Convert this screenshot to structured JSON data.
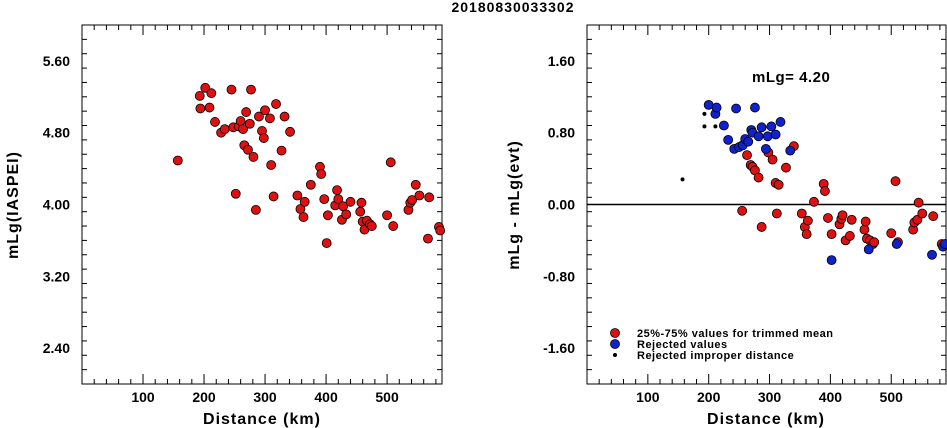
{
  "title": "20180830033302",
  "chart_data": [
    {
      "type": "scatter",
      "xlabel": "Distance (km)",
      "ylabel": "mLg(IASPEI)",
      "xlim": [
        0,
        590
      ],
      "ylim": [
        2.0,
        6.0
      ],
      "xticks": [
        100,
        200,
        300,
        400,
        500
      ],
      "yticks": [
        2.4,
        3.2,
        4.0,
        4.8,
        5.6
      ],
      "ytick_labels": [
        "2.40",
        "3.20",
        "4.00",
        "4.80",
        "5.60"
      ],
      "xtick_labels": [
        "100",
        "200",
        "300",
        "400",
        "500"
      ],
      "series": [
        {
          "color": "#dd1111",
          "points": [
            [
              157,
              4.49
            ],
            [
              193,
              5.21
            ],
            [
              194,
              5.07
            ],
            [
              202,
              5.3
            ],
            [
              209,
              5.08
            ],
            [
              212,
              5.24
            ],
            [
              218,
              4.92
            ],
            [
              228,
              4.8
            ],
            [
              234,
              4.84
            ],
            [
              245,
              5.28
            ],
            [
              248,
              4.86
            ],
            [
              252,
              4.12
            ],
            [
              257,
              4.87
            ],
            [
              260,
              4.93
            ],
            [
              264,
              4.84
            ],
            [
              266,
              4.66
            ],
            [
              269,
              5.03
            ],
            [
              272,
              4.61
            ],
            [
              275,
              4.9
            ],
            [
              277,
              5.28
            ],
            [
              281,
              4.53
            ],
            [
              285,
              3.94
            ],
            [
              290,
              4.98
            ],
            [
              295,
              4.82
            ],
            [
              298,
              4.74
            ],
            [
              300,
              5.05
            ],
            [
              308,
              4.96
            ],
            [
              310,
              4.44
            ],
            [
              314,
              4.09
            ],
            [
              318,
              5.12
            ],
            [
              327,
              4.6
            ],
            [
              332,
              4.98
            ],
            [
              341,
              4.81
            ],
            [
              353,
              4.1
            ],
            [
              358,
              3.95
            ],
            [
              363,
              3.86
            ],
            [
              365,
              4.03
            ],
            [
              375,
              4.22
            ],
            [
              390,
              4.42
            ],
            [
              392,
              4.34
            ],
            [
              397,
              4.06
            ],
            [
              401,
              3.57
            ],
            [
              403,
              3.88
            ],
            [
              415,
              3.99
            ],
            [
              418,
              4.16
            ],
            [
              420,
              4.06
            ],
            [
              426,
              3.83
            ],
            [
              428,
              3.98
            ],
            [
              433,
              3.89
            ],
            [
              440,
              4.03
            ],
            [
              456,
              3.92
            ],
            [
              458,
              4.02
            ],
            [
              460,
              3.81
            ],
            [
              463,
              3.72
            ],
            [
              467,
              3.82
            ],
            [
              472,
              3.78
            ],
            [
              475,
              3.76
            ],
            [
              500,
              3.88
            ],
            [
              506,
              4.47
            ],
            [
              510,
              3.76
            ],
            [
              535,
              3.94
            ],
            [
              538,
              4.02
            ],
            [
              541,
              4.05
            ],
            [
              547,
              4.22
            ],
            [
              553,
              4.1
            ],
            [
              567,
              3.62
            ],
            [
              569,
              4.08
            ],
            [
              585,
              3.75
            ],
            [
              587,
              3.71
            ]
          ]
        }
      ]
    },
    {
      "type": "scatter",
      "xlabel": "Distance (km)",
      "ylabel": "mLg - mLg(evt)",
      "xlim": [
        0,
        590
      ],
      "ylim": [
        -2.0,
        2.0
      ],
      "xticks": [
        100,
        200,
        300,
        400,
        500
      ],
      "yticks": [
        -1.6,
        -0.8,
        0.0,
        0.8,
        1.6
      ],
      "ytick_labels": [
        "-1.60",
        "-0.80",
        "0.00",
        "0.80",
        "1.60"
      ],
      "xtick_labels": [
        "100",
        "200",
        "300",
        "400",
        "500"
      ],
      "annotation": "mLg= 4.20",
      "zero_line": true,
      "legend": {
        "position": "bottom-left",
        "entries": [
          {
            "label": "25%-75% values for trimmed mean",
            "color": "#dd1111"
          },
          {
            "label": "Rejected values",
            "color": "#1122cc"
          },
          {
            "label": "Rejected improper distance",
            "color": "#000000"
          }
        ]
      },
      "series": [
        {
          "color": "#dd1111",
          "points": [
            [
              255,
              -0.07
            ],
            [
              263,
              0.55
            ],
            [
              269,
              0.44
            ],
            [
              272,
              0.42
            ],
            [
              276,
              0.38
            ],
            [
              282,
              0.3
            ],
            [
              287,
              -0.25
            ],
            [
              298,
              0.58
            ],
            [
              305,
              0.5
            ],
            [
              310,
              0.24
            ],
            [
              315,
              0.22
            ],
            [
              312,
              -0.1
            ],
            [
              327,
              0.41
            ],
            [
              340,
              0.65
            ],
            [
              353,
              -0.1
            ],
            [
              358,
              -0.25
            ],
            [
              361,
              -0.33
            ],
            [
              363,
              -0.18
            ],
            [
              373,
              0.03
            ],
            [
              389,
              0.23
            ],
            [
              391,
              0.15
            ],
            [
              396,
              -0.15
            ],
            [
              402,
              -0.33
            ],
            [
              415,
              -0.22
            ],
            [
              418,
              -0.16
            ],
            [
              420,
              -0.12
            ],
            [
              425,
              -0.4
            ],
            [
              432,
              -0.35
            ],
            [
              435,
              -0.17
            ],
            [
              456,
              -0.28
            ],
            [
              458,
              -0.19
            ],
            [
              460,
              -0.38
            ],
            [
              465,
              -0.4
            ],
            [
              470,
              -0.44
            ],
            [
              472,
              -0.42
            ],
            [
              500,
              -0.32
            ],
            [
              507,
              0.26
            ],
            [
              511,
              -0.42
            ],
            [
              536,
              -0.28
            ],
            [
              538,
              -0.2
            ],
            [
              543,
              -0.17
            ],
            [
              545,
              0.02
            ],
            [
              551,
              -0.1
            ],
            [
              569,
              -0.13
            ],
            [
              583,
              -0.44
            ]
          ]
        },
        {
          "color": "#1122cc",
          "points": [
            [
              200,
              1.11
            ],
            [
              211,
              1.01
            ],
            [
              213,
              1.08
            ],
            [
              225,
              0.88
            ],
            [
              232,
              0.72
            ],
            [
              242,
              0.62
            ],
            [
              245,
              1.07
            ],
            [
              250,
              0.64
            ],
            [
              256,
              0.66
            ],
            [
              260,
              0.73
            ],
            [
              265,
              0.7
            ],
            [
              270,
              0.83
            ],
            [
              272,
              0.8
            ],
            [
              276,
              1.08
            ],
            [
              282,
              0.76
            ],
            [
              287,
              0.86
            ],
            [
              294,
              0.62
            ],
            [
              297,
              0.76
            ],
            [
              303,
              0.87
            ],
            [
              310,
              0.78
            ],
            [
              318,
              0.92
            ],
            [
              334,
              0.6
            ],
            [
              402,
              -0.62
            ],
            [
              463,
              -0.5
            ],
            [
              509,
              -0.44
            ],
            [
              567,
              -0.56
            ],
            [
              585,
              -0.47
            ],
            [
              588,
              -0.44
            ]
          ]
        },
        {
          "color": "#000000",
          "small": true,
          "points": [
            [
              157,
              0.28
            ],
            [
              193,
              1.01
            ],
            [
              193,
              0.87
            ],
            [
              211,
              0.87
            ]
          ]
        }
      ]
    }
  ]
}
